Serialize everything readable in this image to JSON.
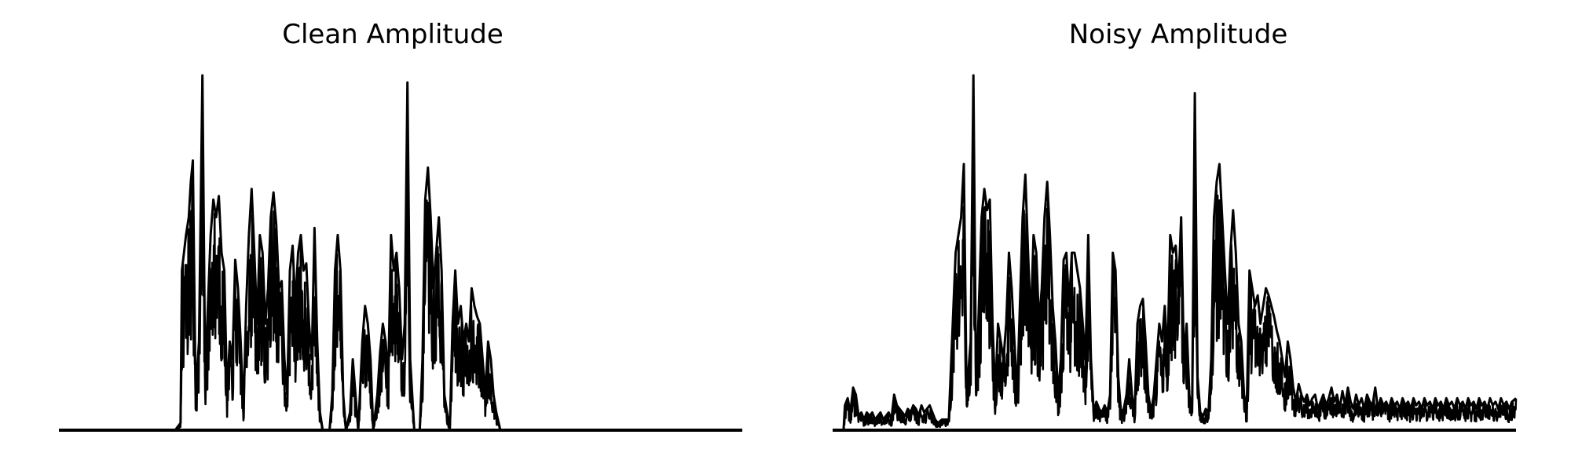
{
  "chart_data": [
    {
      "type": "line",
      "title": "Clean Amplitude",
      "xlabel": "",
      "ylabel": "",
      "axes_visible": false,
      "grid": false,
      "line_color": "#000000",
      "ylim": [
        0,
        1.0
      ],
      "envelope": [
        [
          0.0,
          0.0
        ],
        [
          0.17,
          0.0
        ],
        [
          0.178,
          0.02
        ],
        [
          0.18,
          0.45
        ],
        [
          0.183,
          0.5
        ],
        [
          0.186,
          0.55
        ],
        [
          0.19,
          0.6
        ],
        [
          0.193,
          0.7
        ],
        [
          0.196,
          0.76
        ],
        [
          0.2,
          0.1
        ],
        [
          0.205,
          0.25
        ],
        [
          0.21,
          1.0
        ],
        [
          0.214,
          0.15
        ],
        [
          0.218,
          0.35
        ],
        [
          0.222,
          0.55
        ],
        [
          0.226,
          0.65
        ],
        [
          0.23,
          0.6
        ],
        [
          0.234,
          0.66
        ],
        [
          0.238,
          0.5
        ],
        [
          0.242,
          0.45
        ],
        [
          0.246,
          0.1
        ],
        [
          0.25,
          0.25
        ],
        [
          0.254,
          0.2
        ],
        [
          0.258,
          0.48
        ],
        [
          0.262,
          0.4
        ],
        [
          0.266,
          0.25
        ],
        [
          0.27,
          0.05
        ],
        [
          0.274,
          0.35
        ],
        [
          0.278,
          0.55
        ],
        [
          0.282,
          0.68
        ],
        [
          0.286,
          0.5
        ],
        [
          0.29,
          0.3
        ],
        [
          0.294,
          0.55
        ],
        [
          0.298,
          0.5
        ],
        [
          0.302,
          0.3
        ],
        [
          0.306,
          0.4
        ],
        [
          0.31,
          0.6
        ],
        [
          0.314,
          0.67
        ],
        [
          0.318,
          0.58
        ],
        [
          0.322,
          0.4
        ],
        [
          0.326,
          0.42
        ],
        [
          0.33,
          0.2
        ],
        [
          0.334,
          0.1
        ],
        [
          0.338,
          0.45
        ],
        [
          0.342,
          0.52
        ],
        [
          0.346,
          0.35
        ],
        [
          0.35,
          0.5
        ],
        [
          0.354,
          0.55
        ],
        [
          0.358,
          0.45
        ],
        [
          0.362,
          0.47
        ],
        [
          0.366,
          0.3
        ],
        [
          0.37,
          0.2
        ],
        [
          0.374,
          0.57
        ],
        [
          0.378,
          0.25
        ],
        [
          0.382,
          0.05
        ],
        [
          0.386,
          0.0
        ],
        [
          0.396,
          0.0
        ],
        [
          0.4,
          0.1
        ],
        [
          0.404,
          0.45
        ],
        [
          0.408,
          0.55
        ],
        [
          0.412,
          0.45
        ],
        [
          0.416,
          0.1
        ],
        [
          0.42,
          0.0
        ],
        [
          0.426,
          0.05
        ],
        [
          0.43,
          0.2
        ],
        [
          0.434,
          0.1
        ],
        [
          0.438,
          0.0
        ],
        [
          0.444,
          0.25
        ],
        [
          0.448,
          0.35
        ],
        [
          0.452,
          0.3
        ],
        [
          0.456,
          0.2
        ],
        [
          0.46,
          0.0
        ],
        [
          0.466,
          0.1
        ],
        [
          0.47,
          0.22
        ],
        [
          0.474,
          0.3
        ],
        [
          0.478,
          0.25
        ],
        [
          0.482,
          0.15
        ],
        [
          0.486,
          0.55
        ],
        [
          0.49,
          0.45
        ],
        [
          0.494,
          0.5
        ],
        [
          0.498,
          0.4
        ],
        [
          0.502,
          0.2
        ],
        [
          0.506,
          0.3
        ],
        [
          0.51,
          0.98
        ],
        [
          0.514,
          0.2
        ],
        [
          0.52,
          0.0
        ],
        [
          0.528,
          0.0
        ],
        [
          0.532,
          0.2
        ],
        [
          0.536,
          0.65
        ],
        [
          0.54,
          0.74
        ],
        [
          0.544,
          0.6
        ],
        [
          0.548,
          0.4
        ],
        [
          0.552,
          0.5
        ],
        [
          0.556,
          0.6
        ],
        [
          0.56,
          0.45
        ],
        [
          0.564,
          0.1
        ],
        [
          0.572,
          0.0
        ],
        [
          0.576,
          0.3
        ],
        [
          0.58,
          0.45
        ],
        [
          0.584,
          0.3
        ],
        [
          0.588,
          0.35
        ],
        [
          0.592,
          0.25
        ],
        [
          0.596,
          0.3
        ],
        [
          0.6,
          0.25
        ],
        [
          0.604,
          0.4
        ],
        [
          0.608,
          0.35
        ],
        [
          0.612,
          0.32
        ],
        [
          0.616,
          0.3
        ],
        [
          0.62,
          0.2
        ],
        [
          0.624,
          0.1
        ],
        [
          0.628,
          0.25
        ],
        [
          0.632,
          0.2
        ],
        [
          0.636,
          0.1
        ],
        [
          0.64,
          0.05
        ],
        [
          0.646,
          0.0
        ],
        [
          1.0,
          0.0
        ]
      ]
    },
    {
      "type": "line",
      "title": "Noisy Amplitude",
      "xlabel": "",
      "ylabel": "",
      "axes_visible": false,
      "grid": false,
      "line_color": "#000000",
      "ylim": [
        0,
        1.0
      ],
      "envelope": [
        [
          0.0,
          0.0
        ],
        [
          0.016,
          0.0
        ],
        [
          0.018,
          0.07
        ],
        [
          0.022,
          0.09
        ],
        [
          0.026,
          0.05
        ],
        [
          0.03,
          0.12
        ],
        [
          0.034,
          0.1
        ],
        [
          0.038,
          0.04
        ],
        [
          0.042,
          0.05
        ],
        [
          0.046,
          0.03
        ],
        [
          0.05,
          0.05
        ],
        [
          0.054,
          0.04
        ],
        [
          0.058,
          0.05
        ],
        [
          0.062,
          0.03
        ],
        [
          0.066,
          0.04
        ],
        [
          0.07,
          0.05
        ],
        [
          0.074,
          0.03
        ],
        [
          0.078,
          0.04
        ],
        [
          0.082,
          0.05
        ],
        [
          0.086,
          0.03
        ],
        [
          0.09,
          0.1
        ],
        [
          0.094,
          0.07
        ],
        [
          0.098,
          0.06
        ],
        [
          0.102,
          0.05
        ],
        [
          0.106,
          0.04
        ],
        [
          0.11,
          0.06
        ],
        [
          0.114,
          0.05
        ],
        [
          0.118,
          0.07
        ],
        [
          0.122,
          0.06
        ],
        [
          0.126,
          0.04
        ],
        [
          0.13,
          0.07
        ],
        [
          0.134,
          0.05
        ],
        [
          0.138,
          0.06
        ],
        [
          0.142,
          0.07
        ],
        [
          0.146,
          0.05
        ],
        [
          0.15,
          0.03
        ],
        [
          0.154,
          0.02
        ],
        [
          0.16,
          0.03
        ],
        [
          0.17,
          0.03
        ],
        [
          0.18,
          0.5
        ],
        [
          0.184,
          0.55
        ],
        [
          0.188,
          0.6
        ],
        [
          0.192,
          0.75
        ],
        [
          0.196,
          0.1
        ],
        [
          0.202,
          0.25
        ],
        [
          0.206,
          1.0
        ],
        [
          0.21,
          0.1
        ],
        [
          0.214,
          0.35
        ],
        [
          0.218,
          0.6
        ],
        [
          0.222,
          0.68
        ],
        [
          0.226,
          0.62
        ],
        [
          0.23,
          0.65
        ],
        [
          0.234,
          0.3
        ],
        [
          0.238,
          0.1
        ],
        [
          0.242,
          0.3
        ],
        [
          0.246,
          0.25
        ],
        [
          0.25,
          0.2
        ],
        [
          0.254,
          0.3
        ],
        [
          0.258,
          0.5
        ],
        [
          0.262,
          0.4
        ],
        [
          0.266,
          0.25
        ],
        [
          0.27,
          0.1
        ],
        [
          0.274,
          0.35
        ],
        [
          0.278,
          0.6
        ],
        [
          0.282,
          0.72
        ],
        [
          0.286,
          0.5
        ],
        [
          0.29,
          0.3
        ],
        [
          0.294,
          0.55
        ],
        [
          0.298,
          0.5
        ],
        [
          0.302,
          0.3
        ],
        [
          0.306,
          0.4
        ],
        [
          0.31,
          0.6
        ],
        [
          0.314,
          0.7
        ],
        [
          0.318,
          0.55
        ],
        [
          0.322,
          0.35
        ],
        [
          0.326,
          0.25
        ],
        [
          0.33,
          0.1
        ],
        [
          0.334,
          0.2
        ],
        [
          0.338,
          0.48
        ],
        [
          0.342,
          0.5
        ],
        [
          0.346,
          0.35
        ],
        [
          0.35,
          0.5
        ],
        [
          0.354,
          0.5
        ],
        [
          0.358,
          0.45
        ],
        [
          0.362,
          0.4
        ],
        [
          0.366,
          0.3
        ],
        [
          0.37,
          0.2
        ],
        [
          0.374,
          0.55
        ],
        [
          0.378,
          0.2
        ],
        [
          0.382,
          0.05
        ],
        [
          0.386,
          0.08
        ],
        [
          0.39,
          0.06
        ],
        [
          0.394,
          0.05
        ],
        [
          0.398,
          0.07
        ],
        [
          0.402,
          0.05
        ],
        [
          0.406,
          0.1
        ],
        [
          0.41,
          0.5
        ],
        [
          0.414,
          0.45
        ],
        [
          0.418,
          0.15
        ],
        [
          0.422,
          0.05
        ],
        [
          0.426,
          0.06
        ],
        [
          0.43,
          0.1
        ],
        [
          0.434,
          0.2
        ],
        [
          0.438,
          0.1
        ],
        [
          0.442,
          0.05
        ],
        [
          0.446,
          0.3
        ],
        [
          0.45,
          0.35
        ],
        [
          0.454,
          0.37
        ],
        [
          0.458,
          0.25
        ],
        [
          0.462,
          0.1
        ],
        [
          0.466,
          0.05
        ],
        [
          0.47,
          0.1
        ],
        [
          0.474,
          0.2
        ],
        [
          0.478,
          0.3
        ],
        [
          0.482,
          0.25
        ],
        [
          0.486,
          0.35
        ],
        [
          0.49,
          0.2
        ],
        [
          0.494,
          0.55
        ],
        [
          0.498,
          0.5
        ],
        [
          0.502,
          0.52
        ],
        [
          0.506,
          0.4
        ],
        [
          0.51,
          0.6
        ],
        [
          0.514,
          0.2
        ],
        [
          0.518,
          0.3
        ],
        [
          0.522,
          0.1
        ],
        [
          0.526,
          0.05
        ],
        [
          0.53,
          0.95
        ],
        [
          0.534,
          0.15
        ],
        [
          0.538,
          0.05
        ],
        [
          0.542,
          0.04
        ],
        [
          0.546,
          0.06
        ],
        [
          0.55,
          0.05
        ],
        [
          0.554,
          0.2
        ],
        [
          0.558,
          0.6
        ],
        [
          0.562,
          0.7
        ],
        [
          0.566,
          0.75
        ],
        [
          0.57,
          0.6
        ],
        [
          0.574,
          0.45
        ],
        [
          0.578,
          0.3
        ],
        [
          0.582,
          0.5
        ],
        [
          0.586,
          0.62
        ],
        [
          0.59,
          0.5
        ],
        [
          0.594,
          0.3
        ],
        [
          0.598,
          0.25
        ],
        [
          0.602,
          0.1
        ],
        [
          0.606,
          0.06
        ],
        [
          0.61,
          0.45
        ],
        [
          0.614,
          0.4
        ],
        [
          0.618,
          0.35
        ],
        [
          0.622,
          0.38
        ],
        [
          0.626,
          0.3
        ],
        [
          0.63,
          0.35
        ],
        [
          0.634,
          0.4
        ],
        [
          0.638,
          0.38
        ],
        [
          0.642,
          0.35
        ],
        [
          0.646,
          0.32
        ],
        [
          0.65,
          0.28
        ],
        [
          0.654,
          0.25
        ],
        [
          0.658,
          0.2
        ],
        [
          0.662,
          0.15
        ],
        [
          0.666,
          0.25
        ],
        [
          0.67,
          0.2
        ],
        [
          0.674,
          0.12
        ],
        [
          0.678,
          0.08
        ],
        [
          0.682,
          0.13
        ],
        [
          0.686,
          0.1
        ],
        [
          0.69,
          0.08
        ],
        [
          0.694,
          0.1
        ],
        [
          0.698,
          0.07
        ],
        [
          0.702,
          0.09
        ],
        [
          0.706,
          0.1
        ],
        [
          0.71,
          0.06
        ],
        [
          0.714,
          0.08
        ],
        [
          0.718,
          0.1
        ],
        [
          0.722,
          0.07
        ],
        [
          0.726,
          0.09
        ],
        [
          0.73,
          0.12
        ],
        [
          0.734,
          0.08
        ],
        [
          0.738,
          0.1
        ],
        [
          0.742,
          0.06
        ],
        [
          0.746,
          0.11
        ],
        [
          0.75,
          0.07
        ],
        [
          0.754,
          0.12
        ],
        [
          0.758,
          0.08
        ],
        [
          0.762,
          0.06
        ],
        [
          0.766,
          0.1
        ],
        [
          0.77,
          0.07
        ],
        [
          0.774,
          0.09
        ],
        [
          0.778,
          0.06
        ],
        [
          0.782,
          0.1
        ],
        [
          0.786,
          0.08
        ],
        [
          0.79,
          0.07
        ],
        [
          0.794,
          0.12
        ],
        [
          0.798,
          0.06
        ],
        [
          0.802,
          0.09
        ],
        [
          0.806,
          0.07
        ],
        [
          0.81,
          0.08
        ],
        [
          0.814,
          0.06
        ],
        [
          0.818,
          0.09
        ],
        [
          0.822,
          0.07
        ],
        [
          0.826,
          0.08
        ],
        [
          0.83,
          0.06
        ],
        [
          0.834,
          0.09
        ],
        [
          0.838,
          0.07
        ],
        [
          0.842,
          0.08
        ],
        [
          0.846,
          0.06
        ],
        [
          0.85,
          0.09
        ],
        [
          0.854,
          0.07
        ],
        [
          0.858,
          0.08
        ],
        [
          0.862,
          0.06
        ],
        [
          0.866,
          0.09
        ],
        [
          0.87,
          0.07
        ],
        [
          0.874,
          0.08
        ],
        [
          0.878,
          0.06
        ],
        [
          0.882,
          0.09
        ],
        [
          0.886,
          0.07
        ],
        [
          0.89,
          0.08
        ],
        [
          0.894,
          0.06
        ],
        [
          0.898,
          0.09
        ],
        [
          0.902,
          0.07
        ],
        [
          0.906,
          0.08
        ],
        [
          0.91,
          0.06
        ],
        [
          0.914,
          0.09
        ],
        [
          0.918,
          0.07
        ],
        [
          0.922,
          0.08
        ],
        [
          0.926,
          0.06
        ],
        [
          0.93,
          0.09
        ],
        [
          0.934,
          0.07
        ],
        [
          0.938,
          0.08
        ],
        [
          0.942,
          0.06
        ],
        [
          0.946,
          0.09
        ],
        [
          0.95,
          0.07
        ],
        [
          0.954,
          0.08
        ],
        [
          0.958,
          0.06
        ],
        [
          0.962,
          0.09
        ],
        [
          0.966,
          0.07
        ],
        [
          0.97,
          0.08
        ],
        [
          0.974,
          0.06
        ],
        [
          0.978,
          0.09
        ],
        [
          0.982,
          0.07
        ],
        [
          0.986,
          0.08
        ],
        [
          0.99,
          0.06
        ],
        [
          0.994,
          0.08
        ],
        [
          1.0,
          0.09
        ]
      ]
    }
  ]
}
